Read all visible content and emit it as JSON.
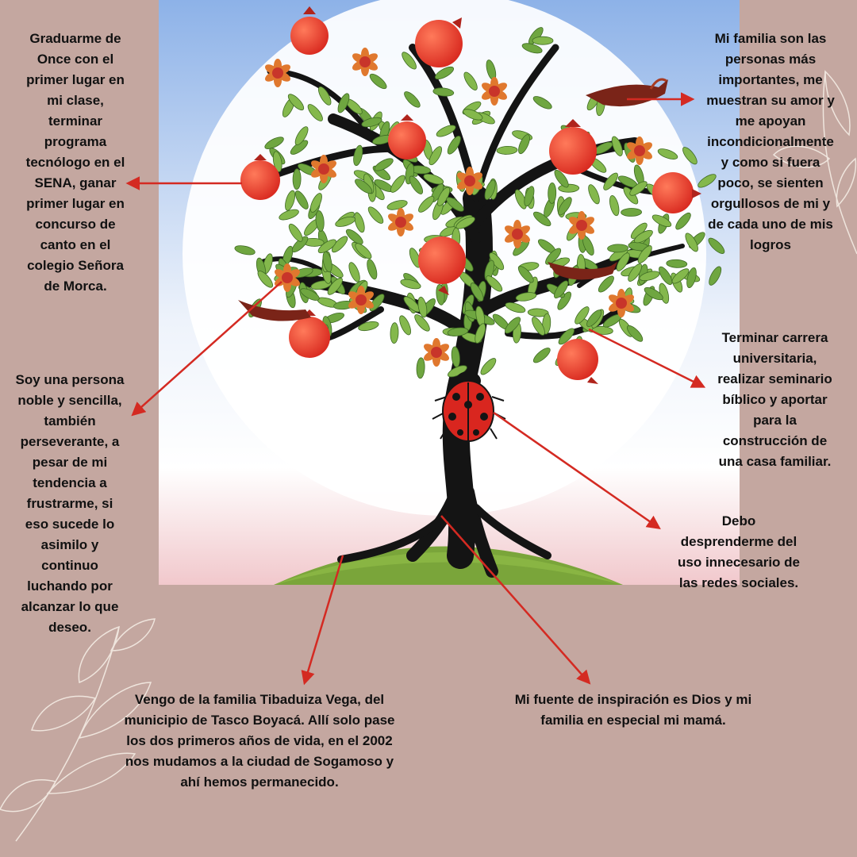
{
  "texts": {
    "achievements": "Graduarme de\nOnce con el\nprimer lugar en\nmi clase,\nterminar\nprograma\ntecnólogo en el\nSENA, ganar\nprimer lugar en\nconcurso de\ncanto en el\ncolegio Señora\nde Morca.",
    "family": "Mi familia son las\npersonas más\nimportantes, me\nmuestran su amor y\nme apoyan\nincondicionalmente\ny como si fuera\npoco, se sienten\norgullosos de mi y\nde cada uno de mis\nlogros",
    "personality": "Soy una persona\nnoble y sencilla,\ntambién\nperseverante, a\npesar de mi\ntendencia a\nfrustrarme, si\neso sucede lo\nasimilo y\ncontinuo\nluchando por\nalcanzar lo que\ndeseo.",
    "goals": "Terminar carrera\nuniversitaria,\nrealizar seminario\nbíblico y aportar\npara la\nconstrucción de\nuna casa familiar.",
    "improve": "Debo\ndesprenderme del\nuso innecesario de\nlas redes sociales.",
    "origin": "Vengo de la familia Tibaduiza Vega, del\nmunicipio de Tasco Boyacá. Allí solo pase\nlos dos primeros años de vida, en el 2002\nnos mudamos a la ciudad de Sogamoso y\nahí hemos permanecido.",
    "inspiration": "Mi fuente de inspiración es Dios y mi\nfamilia en especial mi mamá."
  },
  "colors": {
    "background": "#c4a7a0",
    "arrow": "#d42a22",
    "sky_top": "#8db2e8",
    "moon": "#ffffff",
    "hill": "#7aa53a",
    "trunk": "#141414",
    "leaf": "#6fa640",
    "fruit": "#e8352a",
    "flower": "#d9552a",
    "ladybug": "#d9261f"
  },
  "icons": [
    "tree-illustration",
    "pomegranate-fruit",
    "ladybug",
    "bird",
    "leaf-sketch"
  ]
}
